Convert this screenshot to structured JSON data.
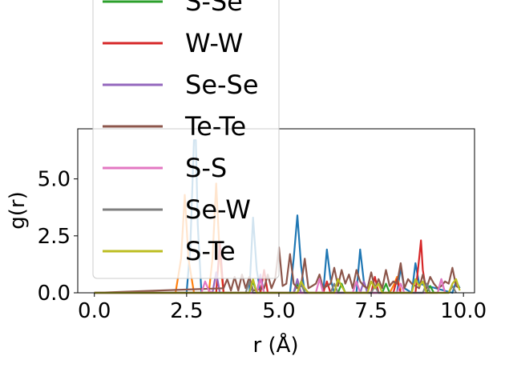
{
  "chart_data": {
    "type": "line",
    "xlabel": "r (Å)",
    "ylabel": "g(r)",
    "xlim": [
      -0.45,
      10.3
    ],
    "ylim": [
      0,
      7.2
    ],
    "x_ticks": [
      "0.0",
      "2.5",
      "5.0",
      "7.5",
      "10.0"
    ],
    "x_tick_values": [
      0,
      2.5,
      5,
      7.5,
      10
    ],
    "y_ticks": [
      "0.0",
      "2.5",
      "5.0"
    ],
    "y_tick_values": [
      0,
      2.5,
      5
    ],
    "grid": false,
    "legend_position": "upper-left, extends above plot",
    "series": [
      {
        "name": "",
        "color": "#1f77b4",
        "x": [
          0,
          2.5,
          2.6,
          2.7,
          2.75,
          2.8,
          2.9,
          3.5,
          4.2,
          4.3,
          4.4,
          4.5,
          5.3,
          5.4,
          5.5,
          5.6,
          5.7,
          6.2,
          6.3,
          6.4,
          6.5,
          7.1,
          7.2,
          7.3,
          7.4,
          8.2,
          8.3,
          8.4,
          8.6,
          8.7,
          8.8,
          9.7,
          9.8,
          9.9
        ],
        "y": [
          0,
          0,
          2.0,
          6.7,
          6.7,
          3.0,
          0,
          0,
          0,
          3.3,
          1.0,
          0,
          0,
          1.5,
          3.4,
          1.2,
          0,
          0,
          1.9,
          0.6,
          0,
          0,
          1.9,
          0.5,
          0,
          0,
          1.1,
          0.2,
          0,
          1.3,
          0.4,
          0,
          0.5,
          0.2
        ]
      },
      {
        "name": "",
        "color": "#ff7f0e",
        "x": [
          0,
          2.2,
          2.35,
          2.45,
          2.55,
          2.7,
          3.1,
          3.2,
          3.3,
          3.4,
          3.5,
          8.0,
          8.1,
          8.2,
          8.3
        ],
        "y": [
          0,
          0,
          1.5,
          4.3,
          1.5,
          0,
          0,
          1.5,
          4.8,
          1.5,
          0,
          0,
          0.3,
          0.7,
          0.1
        ]
      },
      {
        "name": "S-Se",
        "color": "#2ca02c",
        "x": [
          0,
          4.2,
          4.3,
          4.4,
          5.4,
          5.5,
          5.6,
          6.6,
          6.7,
          6.8,
          7.8,
          7.9,
          8.0,
          9.0,
          9.1,
          9.2
        ],
        "y": [
          0,
          0,
          0.5,
          0,
          0,
          0.4,
          0,
          0,
          0.4,
          0,
          0,
          0.4,
          0,
          0,
          0.3,
          0
        ]
      },
      {
        "name": "W-W",
        "color": "#d62728",
        "x": [
          0,
          3.3,
          3.4,
          3.5,
          4.5,
          4.6,
          4.7,
          6.2,
          6.3,
          6.4,
          7.5,
          7.6,
          7.7,
          8.1,
          8.2,
          8.3,
          8.7,
          8.8,
          8.85,
          8.9,
          9.0
        ],
        "y": [
          0,
          0,
          2.2,
          0,
          0,
          1.0,
          0,
          0,
          0.5,
          0,
          0,
          0.7,
          0,
          0,
          0.6,
          0,
          0,
          1.5,
          2.3,
          1.0,
          0
        ]
      },
      {
        "name": "Se-Se",
        "color": "#9467bd",
        "x": [
          0,
          3.2,
          3.3,
          3.4,
          4.4,
          4.5,
          4.6,
          5.4,
          5.5,
          5.6,
          7.2,
          7.3,
          7.4,
          9.3,
          9.4,
          9.5
        ],
        "y": [
          0,
          0,
          0.9,
          0,
          0,
          0.8,
          0,
          0,
          0.6,
          0,
          0,
          0.5,
          0,
          0,
          0.6,
          0
        ]
      },
      {
        "name": "Te-Te",
        "color": "#8c564b",
        "x": [
          0,
          3.5,
          3.6,
          3.7,
          3.8,
          3.9,
          4.0,
          4.1,
          4.2,
          4.3,
          4.6,
          4.7,
          4.8,
          4.9,
          5.0,
          5.1,
          5.2,
          5.3,
          5.4,
          5.5,
          5.6,
          5.7,
          5.8,
          5.9,
          6.0,
          6.1,
          6.2,
          6.3,
          6.4,
          6.5,
          6.6,
          6.7,
          6.8,
          6.9,
          7.0,
          7.1,
          7.2,
          7.3,
          7.4,
          7.5,
          7.6,
          7.7,
          7.8,
          7.9,
          8.0,
          8.1,
          8.2,
          8.3,
          8.4,
          8.5,
          8.6,
          8.7,
          8.8,
          8.9,
          9.0,
          9.1,
          9.2,
          9.3,
          9.4,
          9.5,
          9.6,
          9.7,
          9.8,
          9.9
        ],
        "y": [
          0,
          0.2,
          0.6,
          0.1,
          0.7,
          0.1,
          0.8,
          0.2,
          0.7,
          0.1,
          0.2,
          0.8,
          0.2,
          0.6,
          2.0,
          0.3,
          0.4,
          1.7,
          0.4,
          0.2,
          0.3,
          1.5,
          0.2,
          0.3,
          0.4,
          0.8,
          0.2,
          0.3,
          0.4,
          1.1,
          0.3,
          1.0,
          0.4,
          0.8,
          0.2,
          1.0,
          0.5,
          0.3,
          0.2,
          0.9,
          0.2,
          0.6,
          0.2,
          1.0,
          0.3,
          0.5,
          0.4,
          1.3,
          0.2,
          0.6,
          0.4,
          0.3,
          0.2,
          0.8,
          0.2,
          0.7,
          0.4,
          0.2,
          0.3,
          0.5,
          0.4,
          1.1,
          0.3,
          0.2
        ]
      },
      {
        "name": "S-S",
        "color": "#e377c2",
        "x": [
          0,
          2.9,
          3.0,
          3.1,
          3.2,
          4.4,
          4.5,
          4.6,
          6.0,
          6.1,
          6.2,
          7.0,
          7.1,
          7.2,
          8.2,
          8.3,
          8.4,
          9.3,
          9.4,
          9.5
        ],
        "y": [
          0,
          0,
          0.5,
          0.1,
          0,
          0,
          0.6,
          0,
          0,
          0.6,
          0,
          0,
          0.5,
          0,
          0,
          0.4,
          0,
          0,
          0.6,
          0
        ]
      },
      {
        "name": "Se-W",
        "color": "#7f7f7f",
        "x": [
          0,
          4.1,
          4.2,
          4.3,
          5.5,
          5.6,
          5.7,
          6.4,
          6.5,
          6.6,
          7.5,
          7.6,
          7.7,
          8.9,
          9.0,
          9.1,
          9.6,
          9.7,
          9.8
        ],
        "y": [
          0,
          0,
          0.5,
          0,
          0,
          0.4,
          0,
          0,
          0.4,
          0,
          0,
          0.3,
          0,
          0,
          0.4,
          0,
          0,
          0.3,
          0
        ]
      },
      {
        "name": "S-Te",
        "color": "#bcbd22",
        "x": [
          0,
          4.2,
          4.3,
          4.4,
          5.5,
          5.6,
          5.7,
          5.8,
          6.5,
          6.6,
          6.7,
          6.8,
          7.4,
          7.5,
          7.6,
          7.7,
          7.8,
          8.6,
          8.7,
          8.8,
          8.9,
          9.0,
          9.6,
          9.7,
          9.8,
          9.9
        ],
        "y": [
          0,
          0,
          0.6,
          0,
          0,
          0.5,
          0.2,
          0,
          0,
          0.6,
          0.3,
          0,
          0,
          0.5,
          0.2,
          0.4,
          0,
          0,
          0.6,
          0.3,
          0.5,
          0,
          0,
          0.4,
          0.6,
          0.1
        ]
      }
    ],
    "legend_entries": [
      {
        "label": "S-Se",
        "color": "#2ca02c"
      },
      {
        "label": "W-W",
        "color": "#d62728"
      },
      {
        "label": "Se-Se",
        "color": "#9467bd"
      },
      {
        "label": "Te-Te",
        "color": "#8c564b"
      },
      {
        "label": "S-S",
        "color": "#e377c2"
      },
      {
        "label": "Se-W",
        "color": "#7f7f7f"
      },
      {
        "label": "S-Te",
        "color": "#bcbd22"
      }
    ]
  }
}
